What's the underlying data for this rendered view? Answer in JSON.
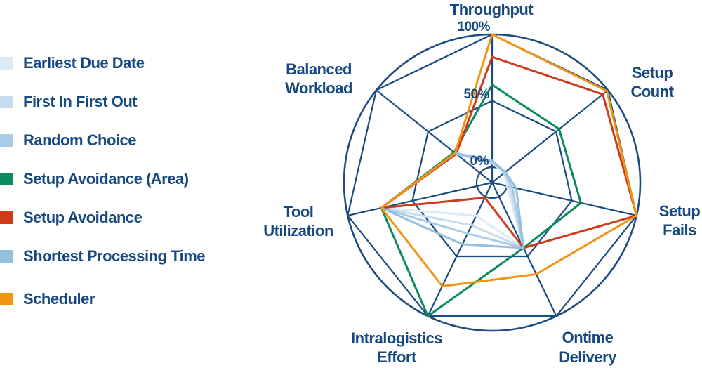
{
  "legend": {
    "items": [
      {
        "label": "Earliest Due Date",
        "color": "#dce9f6"
      },
      {
        "label": "First In First Out",
        "color": "#c6dcef"
      },
      {
        "label": "Random Choice",
        "color": "#a9cce6"
      },
      {
        "label": "Setup Avoidance (Area)",
        "color": "#0a8c5e"
      },
      {
        "label": "Setup Avoidance",
        "color": "#cf3b1a"
      },
      {
        "label": "Shortest Processing Time",
        "color": "#94bfdf"
      },
      {
        "label": "Scheduler",
        "color": "#f29312"
      }
    ]
  },
  "chart_data": {
    "type": "radar",
    "axes": [
      {
        "id": "throughput",
        "label_lines": [
          "Throughput"
        ]
      },
      {
        "id": "setup-count",
        "label_lines": [
          "Setup",
          "Count"
        ]
      },
      {
        "id": "setup-fails",
        "label_lines": [
          "Setup",
          "Fails"
        ]
      },
      {
        "id": "ontime-delivery",
        "label_lines": [
          "Ontime",
          "Delivery"
        ]
      },
      {
        "id": "intralogistics-effort",
        "label_lines": [
          "Intralogistics",
          "Effort"
        ]
      },
      {
        "id": "tool-utilization",
        "label_lines": [
          "Tool",
          "Utilization"
        ]
      },
      {
        "id": "balanced-workload",
        "label_lines": [
          "Balanced",
          "Workload"
        ]
      }
    ],
    "scale": {
      "min": 0,
      "max": 100,
      "unit": "%"
    },
    "ticks": [
      {
        "label": "0%",
        "value": 0
      },
      {
        "label": "50%",
        "value": 50
      },
      {
        "label": "100%",
        "value": 100
      }
    ],
    "series": [
      {
        "name": "Earliest Due Date",
        "color": "#dce9f6",
        "values": [
          3,
          0,
          0,
          43,
          16,
          74,
          23
        ]
      },
      {
        "name": "First In First Out",
        "color": "#c6dcef",
        "values": [
          4,
          0,
          2,
          43,
          24,
          74,
          23
        ]
      },
      {
        "name": "Random Choice",
        "color": "#a9cce6",
        "values": [
          4,
          1,
          4,
          43,
          31,
          74,
          24
        ]
      },
      {
        "name": "Setup Avoidance (Area)",
        "color": "#0a8c5e",
        "values": [
          62,
          53,
          57,
          43,
          100,
          74,
          25
        ]
      },
      {
        "name": "Setup Avoidance",
        "color": "#cf3b1a",
        "values": [
          83,
          95,
          100,
          43,
          1,
          74,
          23
        ]
      },
      {
        "name": "Shortest Processing Time",
        "color": "#94bfdf",
        "values": [
          5,
          1,
          7,
          43,
          40,
          74,
          24
        ]
      },
      {
        "name": "Scheduler",
        "color": "#f29312",
        "values": [
          100,
          99,
          100,
          65,
          75,
          74,
          24
        ]
      }
    ],
    "grid_color": "#1c4c7f",
    "text_color": "#17497f"
  }
}
